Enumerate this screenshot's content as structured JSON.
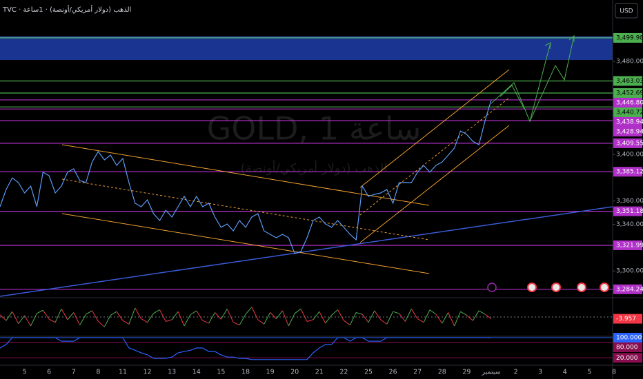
{
  "header": {
    "title": "TVC · الذهب (دولار أمريكي/أونصة) · 1ساعة",
    "currency": "USD"
  },
  "watermark": {
    "symbol": "GOLD, 1 ساعة",
    "description": "الذهب (دولار أمريكي/أونصة)"
  },
  "chart_data": [
    {
      "type": "line",
      "categories": [
        null,
        null,
        null,
        null,
        "5",
        null,
        null,
        null,
        "6",
        null,
        null,
        null,
        "7",
        null,
        null,
        null,
        "8",
        null,
        null,
        null,
        "11",
        null,
        null,
        null,
        "12",
        null,
        null,
        null,
        "13",
        null,
        null,
        null,
        "14",
        null,
        null,
        null,
        "15",
        null,
        null,
        null,
        "18",
        null,
        null,
        null,
        "19",
        null,
        null,
        null,
        "20",
        null,
        null,
        null,
        "21",
        null,
        null,
        null,
        "22",
        null,
        null,
        null,
        "25",
        null,
        null,
        null,
        "26",
        null,
        null,
        null,
        "27",
        null,
        null,
        null,
        "28",
        null,
        null,
        null,
        "29",
        null,
        null,
        null,
        "سبتمبر",
        null,
        null,
        null,
        "2",
        null,
        null,
        null,
        "3",
        null,
        null,
        null,
        "4",
        null,
        null,
        null,
        "5",
        null,
        null,
        null,
        "8"
      ],
      "values": [
        3355.1,
        3369.9,
        3379.9,
        3375.8,
        3366.9,
        3372.8,
        3355.1,
        3384.7,
        3381.7,
        3366.9,
        3372.8,
        3384.7,
        3387.6,
        3377.6,
        3375.8,
        3393.5,
        3402.4,
        3395.3,
        3399.4,
        3390.6,
        3396.5,
        3375.8,
        3358.1,
        3355.1,
        3361.0,
        3349.2,
        3343.3,
        3352.1,
        3346.2,
        3355.1,
        3364.0,
        3355.1,
        3364.0,
        3355.1,
        3358.1,
        3346.2,
        3337.4,
        3340.3,
        3334.4,
        3343.3,
        3337.4,
        3346.2,
        3349.2,
        3334.4,
        3331.4,
        3328.5,
        3331.4,
        3328.5,
        3314.9,
        3316.7,
        3328.5,
        3343.3,
        3346.2,
        3340.3,
        3337.4,
        3343.3,
        3337.4,
        3331.4,
        3326.7,
        3372.8,
        3364.0,
        3365.7,
        3366.9,
        3369.9,
        3358.1,
        3375.8,
        3375.8,
        3375.8,
        3384.7,
        3390.6,
        3384.7,
        3390.6,
        3393.5,
        3399.4,
        3405.4,
        3420.1,
        3417.2,
        3411.3,
        3408.3,
        3429.0,
        3446.7,
        null,
        null,
        null,
        null,
        null,
        null,
        null,
        null,
        null,
        null,
        null,
        null,
        null,
        null,
        null,
        null,
        null,
        null,
        null,
        null
      ],
      "color": "#5b9cf6",
      "ylim": [
        3280,
        3532.5
      ],
      "yticks": [
        {
          "value": 3480,
          "label": "3,480.000"
        },
        {
          "value": 3400,
          "label": "3,400.000"
        },
        {
          "value": 3360,
          "label": "3,360.000"
        },
        {
          "value": 3340,
          "label": "3,340.000"
        },
        {
          "value": 3300,
          "label": "3,300.000"
        }
      ],
      "levels": [
        {
          "value": 3499.987,
          "label": "3,499.987",
          "color": "#4caf50"
        },
        {
          "value": 3463.034,
          "label": "3,463.034",
          "color": "#4caf50"
        },
        {
          "value": 3452.69,
          "label": "3,452.690",
          "color": "#4caf50"
        },
        {
          "value": 3446.805,
          "label": "3,446.805",
          "color": "#b030c8"
        },
        {
          "value": 3440.729,
          "label": "3,440.729",
          "color": "#4caf50"
        },
        {
          "value": 3438.945,
          "label": "3,438.945",
          "color": "#b030c8"
        },
        {
          "value": 3428.946,
          "label": "3,428.946",
          "color": "#b030c8"
        },
        {
          "value": 3409.555,
          "label": "3,409.555",
          "color": "#b030c8"
        },
        {
          "value": 3385.129,
          "label": "3,385.129",
          "color": "#b030c8"
        },
        {
          "value": 3351.18,
          "label": "3,351.180",
          "color": "#b030c8"
        },
        {
          "value": 3321.997,
          "label": "3,321.997",
          "color": "#b030c8"
        },
        {
          "value": 3284.242,
          "label": "3,284.242",
          "color": "#b030c8"
        }
      ]
    },
    {
      "type": "line",
      "values": [
        5,
        -8,
        12,
        -15,
        3,
        -20,
        8,
        15,
        -5,
        -12,
        18,
        -6,
        10,
        -18,
        6,
        14,
        -10,
        -22,
        4,
        12,
        -8,
        -16,
        20,
        -4,
        -12,
        8,
        16,
        -10,
        -6,
        12,
        -20,
        5,
        14,
        -8,
        -14,
        10,
        -5,
        18,
        -12,
        -18,
        6,
        22,
        -6,
        -16,
        10,
        -4,
        14,
        -20,
        8,
        18,
        -10,
        -6,
        12,
        -14,
        4,
        16,
        -8,
        -18,
        10,
        6,
        -12,
        14,
        -6,
        -16,
        12,
        8,
        -10,
        18,
        -4,
        -12,
        16,
        6,
        -14,
        10,
        -20,
        12,
        4,
        -8,
        14,
        6,
        -3.957,
        null,
        null,
        null,
        null,
        null,
        null,
        null,
        null,
        null,
        null,
        null,
        null,
        null,
        null,
        null,
        null,
        null,
        null,
        null,
        null
      ],
      "ylim": [
        -40,
        40
      ],
      "color_up": "#4caf50",
      "color_down": "#f23645"
    },
    {
      "type": "line",
      "values": [
        59,
        73,
        100,
        100,
        100,
        100,
        100,
        100,
        100,
        100,
        86,
        86,
        86,
        100,
        100,
        100,
        100,
        100,
        100,
        100,
        100,
        59,
        50,
        40,
        32,
        18,
        18,
        18,
        23,
        40,
        45,
        50,
        59,
        59,
        45,
        45,
        32,
        23,
        23,
        18,
        18,
        13,
        13,
        13,
        13,
        13,
        13,
        13,
        13,
        13,
        13,
        40,
        59,
        73,
        73,
        100,
        100,
        86,
        100,
        100,
        86,
        86,
        86,
        100,
        100,
        100,
        100,
        100,
        100,
        100,
        100,
        100,
        100,
        100,
        100,
        100,
        100,
        100,
        100,
        100,
        100,
        null,
        null,
        null,
        null,
        null,
        null,
        null,
        null,
        null,
        null,
        null,
        null,
        null,
        null,
        null,
        null,
        null,
        null,
        null,
        null
      ],
      "color": "#2962ff",
      "ylim": [
        0,
        100
      ],
      "yticks": [
        {
          "value": 100,
          "label": "100.000"
        },
        {
          "value": 80,
          "label": "80.000"
        },
        {
          "value": 20,
          "label": "20.000"
        }
      ],
      "tick_colors": [
        "#2962ff",
        "#880e4f",
        "#880e4f"
      ]
    }
  ]
}
